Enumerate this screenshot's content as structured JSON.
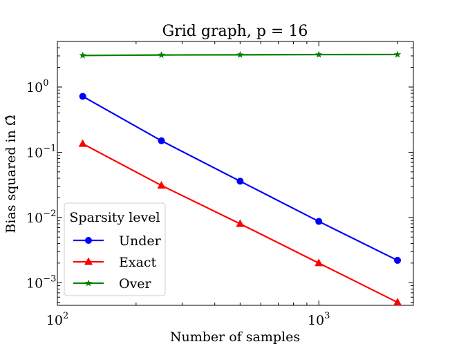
{
  "chart_data": {
    "type": "line",
    "title": "Grid graph, p = 16",
    "xlabel": "Number of samples",
    "ylabel": "Bias squared in Ω̂",
    "xscale": "log",
    "yscale": "log",
    "xlim": [
      100,
      2300
    ],
    "ylim": [
      0.00045,
      5
    ],
    "x": [
      125,
      250,
      500,
      1000,
      2000
    ],
    "x_ticks": [
      {
        "value": 100,
        "base": "10",
        "exp": "2"
      },
      {
        "value": 1000,
        "base": "10",
        "exp": "3"
      }
    ],
    "y_ticks": [
      {
        "value": 1,
        "base": "10",
        "exp": "0"
      },
      {
        "value": 0.1,
        "base": "10",
        "exp": "−1"
      },
      {
        "value": 0.01,
        "base": "10",
        "exp": "−2"
      },
      {
        "value": 0.001,
        "base": "10",
        "exp": "−3"
      }
    ],
    "series": [
      {
        "name": "Under",
        "color": "#0000ff",
        "marker": "circle",
        "values": [
          0.72,
          0.15,
          0.036,
          0.0087,
          0.0022
        ]
      },
      {
        "name": "Exact",
        "color": "#ff0000",
        "marker": "triangle",
        "values": [
          0.135,
          0.031,
          0.008,
          0.002,
          0.0005
        ]
      },
      {
        "name": "Over",
        "color": "#008000",
        "marker": "star",
        "values": [
          3.05,
          3.1,
          3.12,
          3.14,
          3.15
        ]
      }
    ],
    "legend": {
      "title": "Sparsity level",
      "position": "lower-left"
    }
  }
}
